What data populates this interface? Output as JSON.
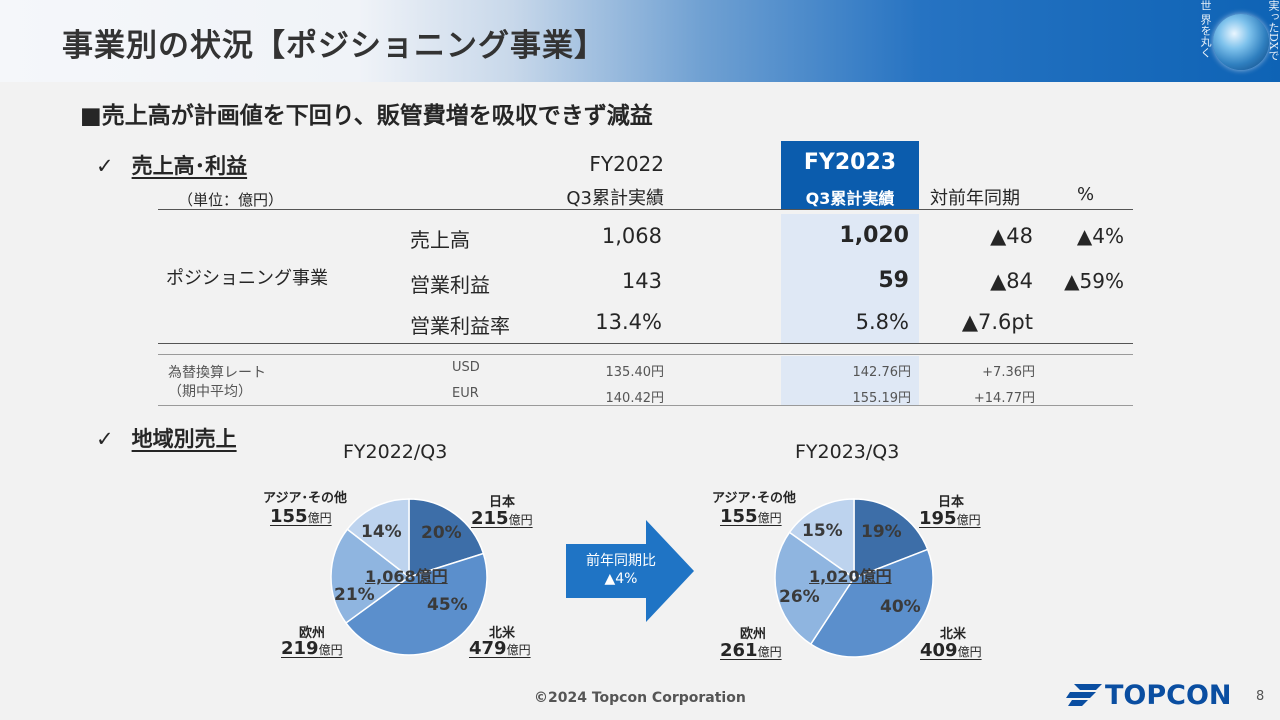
{
  "header": {
    "title": "事業別の状況【ポジショニング事業】",
    "vertical_text": [
      "界を丸く",
      "世",
      "実ったDXで"
    ]
  },
  "subtitle": "■売上高が計画値を下回り、販管費増を吸収できず減益",
  "sections": {
    "sales_profit": {
      "check": "✓",
      "label": "売上高･利益"
    },
    "regional": {
      "check": "✓",
      "label": "地域別売上"
    }
  },
  "table": {
    "unit": "（単位：億円）",
    "headers": {
      "fy2022_top": "FY2022",
      "fy2022_bottom": "Q3累計実績",
      "fy2023_top": "FY2023",
      "fy2023_bottom": "Q3累計実績",
      "yoy": "対前年同期",
      "pct": "%"
    },
    "segment": "ポジショニング事業",
    "rows": [
      {
        "label": "売上高",
        "fy2022": "1,068",
        "fy2023": "1,020",
        "yoy": "▲48",
        "pct": "▲4%"
      },
      {
        "label": "営業利益",
        "fy2022": "143",
        "fy2023": "59",
        "yoy": "▲84",
        "pct": "▲59%"
      },
      {
        "label": "営業利益率",
        "fy2022": "13.4%",
        "fy2023": "5.8%",
        "yoy": "▲7.6pt",
        "pct": ""
      }
    ],
    "fx": {
      "label_line1": "為替換算レート",
      "label_line2": "（期中平均）",
      "rows": [
        {
          "currency": "USD",
          "fy2022": "135.40円",
          "fy2023": "142.76円",
          "yoy": "+7.36円"
        },
        {
          "currency": "EUR",
          "fy2022": "140.42円",
          "fy2023": "155.19円",
          "yoy": "+14.77円"
        }
      ]
    }
  },
  "chart_data": [
    {
      "type": "pie",
      "title": "FY2022/Q3",
      "center_label": "1,068億円",
      "unit": "億円",
      "slices": [
        {
          "name": "日本",
          "value": 215,
          "percent": "20%",
          "color": "#3d6ea8"
        },
        {
          "name": "北米",
          "value": 479,
          "percent": "45%",
          "color": "#5b8fcc"
        },
        {
          "name": "欧州",
          "value": 219,
          "percent": "21%",
          "color": "#8fb5e0"
        },
        {
          "name": "アジア･その他",
          "value": 155,
          "percent": "14%",
          "color": "#bdd3ee"
        }
      ]
    },
    {
      "type": "pie",
      "title": "FY2023/Q3",
      "center_label": "1,020億円",
      "unit": "億円",
      "slices": [
        {
          "name": "日本",
          "value": 195,
          "percent": "19%",
          "color": "#3d6ea8"
        },
        {
          "name": "北米",
          "value": 409,
          "percent": "40%",
          "color": "#5b8fcc"
        },
        {
          "name": "欧州",
          "value": 261,
          "percent": "26%",
          "color": "#8fb5e0"
        },
        {
          "name": "アジア･その他",
          "value": 155,
          "percent": "15%",
          "color": "#bdd3ee"
        }
      ]
    }
  ],
  "arrow": {
    "line1": "前年同期比",
    "line2": "▲4%",
    "color": "#1f74c5"
  },
  "footer": {
    "copyright": "©2024 Topcon Corporation",
    "logo": "TOPCON",
    "page": "8"
  }
}
